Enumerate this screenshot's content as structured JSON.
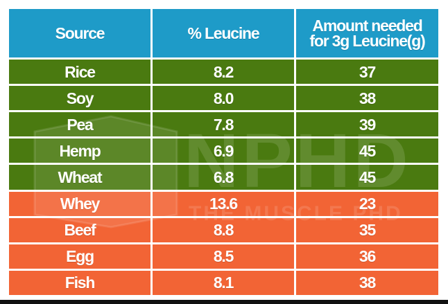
{
  "table": {
    "headers": [
      "Source",
      "% Leucine",
      "Amount needed for 3g  Leucine(g)"
    ],
    "header_line1": "Amount needed",
    "header_line2": "for 3g  Leucine(g)"
  },
  "watermark": {
    "brand": "NPHD",
    "tagline": "THE MUSCLE PHD"
  },
  "colors": {
    "header": "#1e9bc8",
    "plant_rows": "#4a7a10",
    "animal_rows": "#f26435",
    "text": "#ffffff"
  },
  "chart_data": {
    "type": "table",
    "columns": [
      "Source",
      "% Leucine",
      "Amount needed for 3g  Leucine(g)"
    ],
    "rows": [
      {
        "source": "Rice",
        "leucine_pct": "8.2",
        "amount_g": "37",
        "group": "plant"
      },
      {
        "source": "Soy",
        "leucine_pct": "8.0",
        "amount_g": "38",
        "group": "plant"
      },
      {
        "source": "Pea",
        "leucine_pct": "7.8",
        "amount_g": "39",
        "group": "plant"
      },
      {
        "source": "Hemp",
        "leucine_pct": "6.9",
        "amount_g": "45",
        "group": "plant"
      },
      {
        "source": "Wheat",
        "leucine_pct": "6.8",
        "amount_g": "45",
        "group": "plant"
      },
      {
        "source": "Whey",
        "leucine_pct": "13.6",
        "amount_g": "23",
        "group": "animal"
      },
      {
        "source": "Beef",
        "leucine_pct": "8.8",
        "amount_g": "35",
        "group": "animal"
      },
      {
        "source": "Egg",
        "leucine_pct": "8.5",
        "amount_g": "36",
        "group": "animal"
      },
      {
        "source": "Fish",
        "leucine_pct": "8.1",
        "amount_g": "38",
        "group": "animal"
      }
    ]
  }
}
